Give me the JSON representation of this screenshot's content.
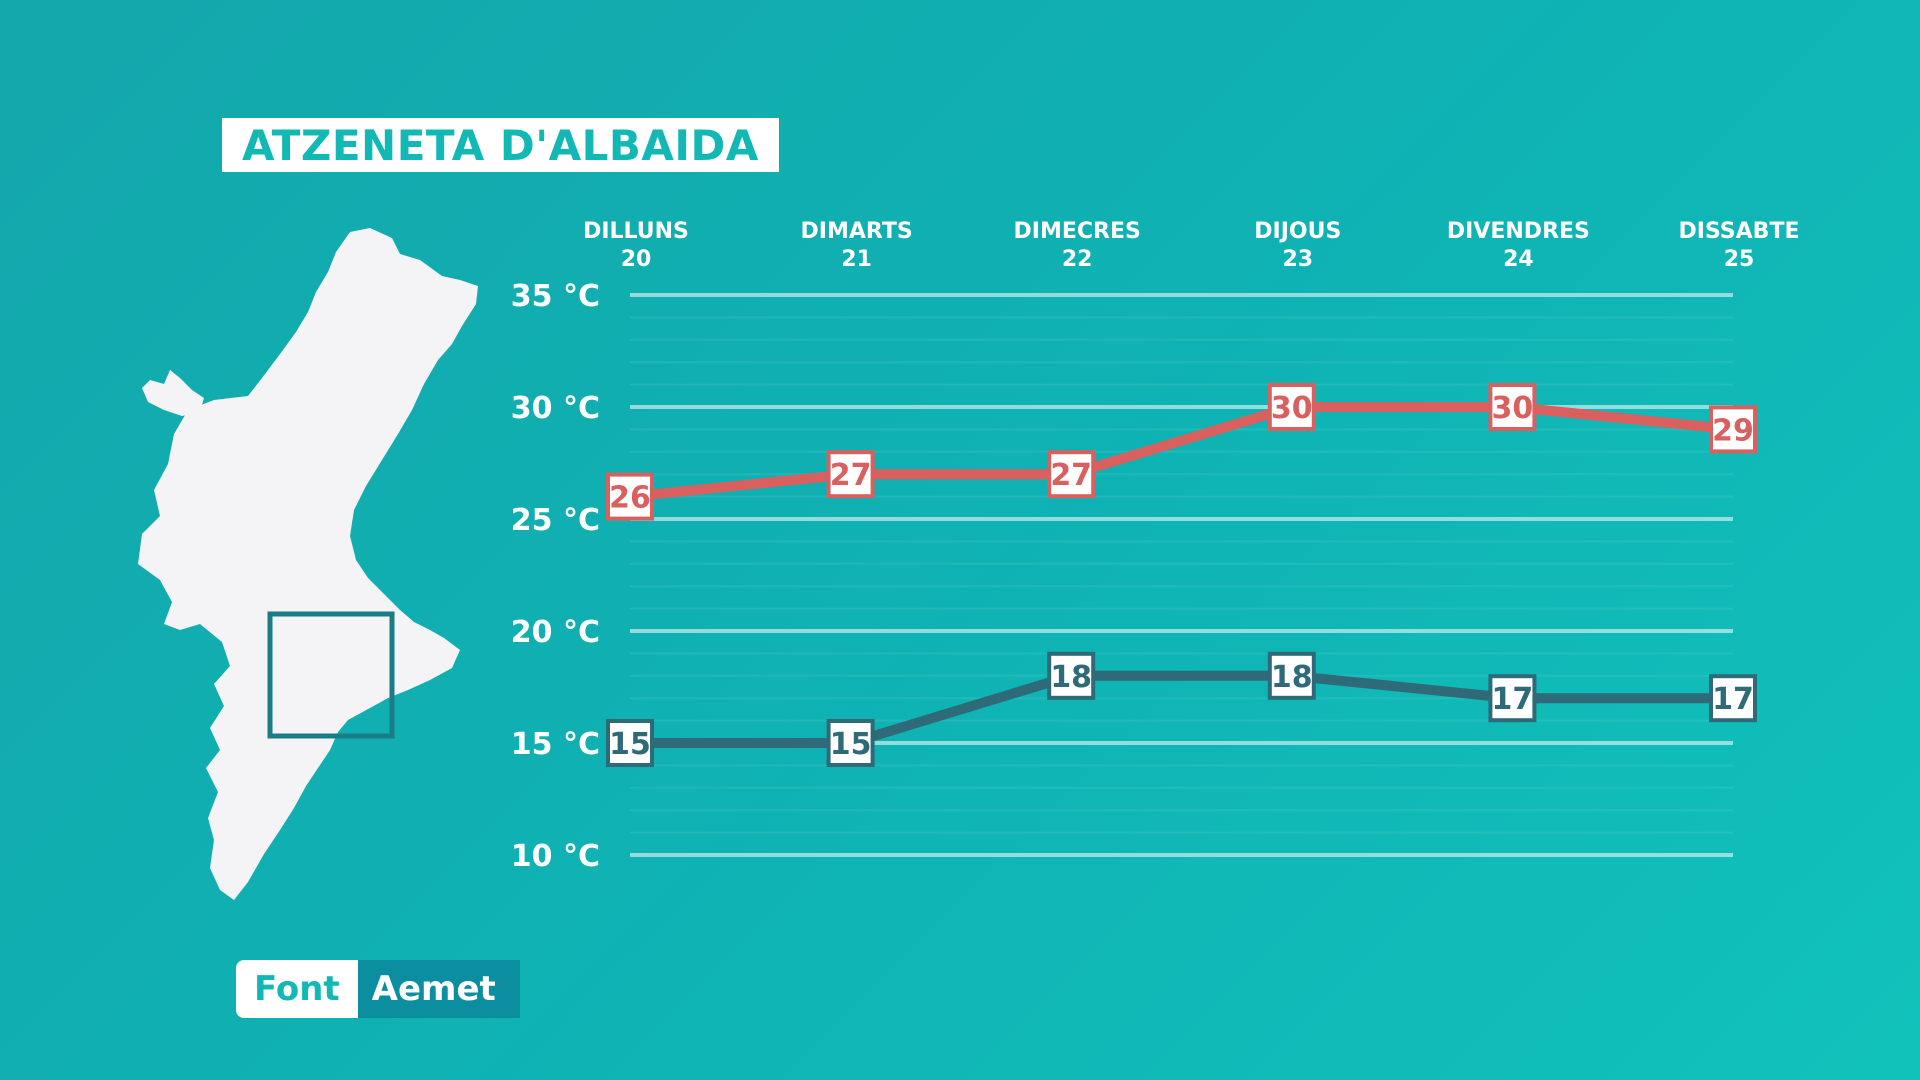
{
  "header": {
    "location": "ATZENETA D'ALBAIDA"
  },
  "source": {
    "label": "Font",
    "value": "Aemet"
  },
  "map": {
    "icon": "valencian-community-map-icon",
    "highlight": "location-box"
  },
  "colors": {
    "background": "#13b2b3",
    "max_line": "#d9605f",
    "min_line": "#2e6a78",
    "label_box": "#ffffff"
  },
  "chart_data": {
    "type": "line",
    "categories": [
      {
        "day": "DILLUNS",
        "date": "20"
      },
      {
        "day": "DIMARTS",
        "date": "21"
      },
      {
        "day": "DIMECRES",
        "date": "22"
      },
      {
        "day": "DIJOUS",
        "date": "23"
      },
      {
        "day": "DIVENDRES",
        "date": "24"
      },
      {
        "day": "DISSABTE",
        "date": "25"
      }
    ],
    "series": [
      {
        "key": "max",
        "values": [
          26,
          27,
          27,
          30,
          30,
          29
        ]
      },
      {
        "key": "min",
        "values": [
          15,
          15,
          18,
          18,
          17,
          17
        ]
      }
    ],
    "yticks": [
      "35 °C",
      "30 °C",
      "25 °C",
      "20 °C",
      "15 °C",
      "10 °C"
    ],
    "ylim": [
      10,
      35
    ],
    "grid": true
  }
}
